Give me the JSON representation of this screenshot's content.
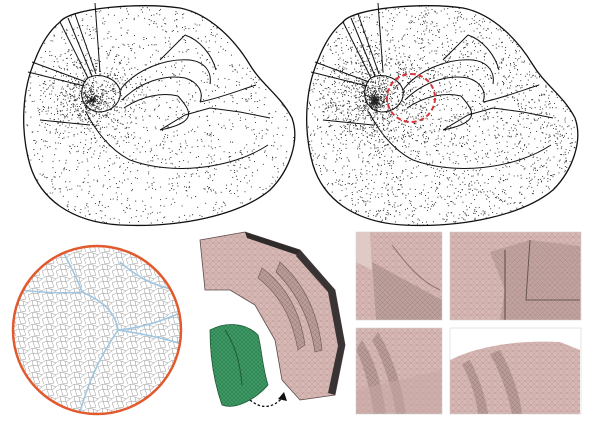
{
  "figure": {
    "panels": [
      {
        "id": "mesh-points-left",
        "kind": "point-sampled domain outline"
      },
      {
        "id": "mesh-points-right",
        "kind": "point-sampled domain outline with highlighted region"
      },
      {
        "id": "zoom-circle",
        "kind": "polygonal mesh magnification"
      },
      {
        "id": "mesh-3d-part",
        "kind": "3D tetrahedral mesh block"
      },
      {
        "id": "mesh-closeups",
        "kind": "four 3D mesh close-ups"
      }
    ],
    "colors": {
      "outline": "#111111",
      "points": "#222222",
      "highlight_dash": "#d8363a",
      "zoom_ring": "#e2592e",
      "zoom_feature_lines": "#9fc7e3",
      "mesh_pink": "#d8b8b4",
      "mesh_pink_dark": "#9c7f7c",
      "mesh_green": "#3d9a64",
      "mesh_green_dark": "#1f5a36",
      "arrow": "#111111"
    }
  }
}
